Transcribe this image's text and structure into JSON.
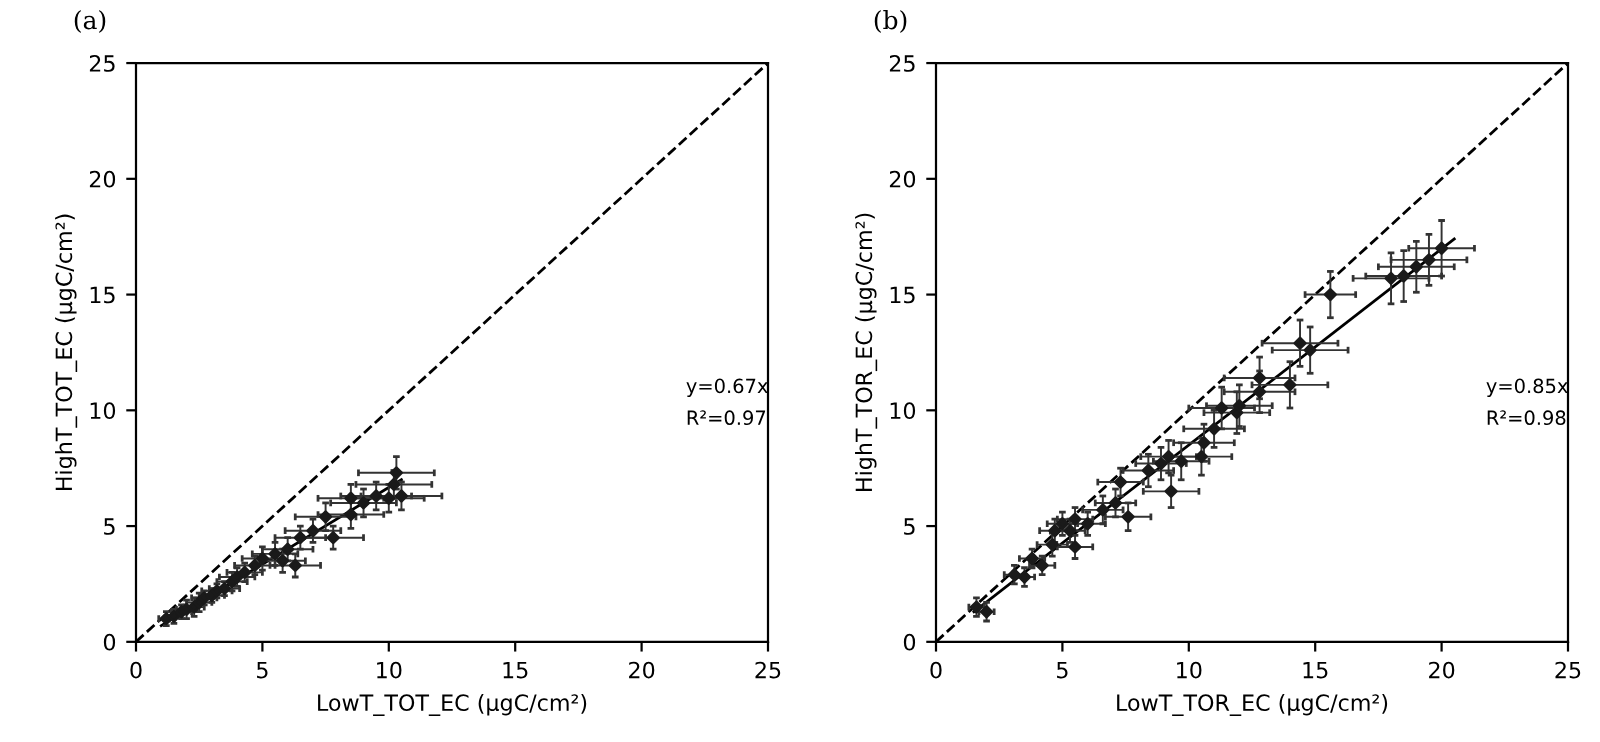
{
  "chart_data": [
    {
      "type": "scatter",
      "title": "(a)",
      "xlabel": "LowT_TOT_EC (μgC/cm²)",
      "ylabel": "HighT_TOT_EC (μgC/cm²)",
      "xlim": [
        0,
        25
      ],
      "ylim": [
        0,
        25
      ],
      "xticks": [
        0,
        5,
        10,
        15,
        20,
        25
      ],
      "yticks": [
        0,
        5,
        10,
        15,
        20,
        25
      ],
      "grid": false,
      "legend": false,
      "annotations": [
        "y=0.67x",
        "R²=0.97"
      ],
      "series": [
        {
          "type": "scatter",
          "color": "#1a1a1a",
          "marker": "diamond",
          "x": [
            1.2,
            1.5,
            1.8,
            2.0,
            2.3,
            2.5,
            2.7,
            3.0,
            3.2,
            3.5,
            3.8,
            4.0,
            4.3,
            4.7,
            5.0,
            5.5,
            5.8,
            6.0,
            6.3,
            6.5,
            7.0,
            7.5,
            7.8,
            8.5,
            8.5,
            9.0,
            9.5,
            10.0,
            10.2,
            10.3,
            10.5
          ],
          "values": [
            1.0,
            1.1,
            1.3,
            1.4,
            1.5,
            1.7,
            1.9,
            2.0,
            2.2,
            2.3,
            2.6,
            2.8,
            3.0,
            3.3,
            3.6,
            3.8,
            3.5,
            4.0,
            3.3,
            4.5,
            4.8,
            5.4,
            4.5,
            5.5,
            6.2,
            6.0,
            6.3,
            6.2,
            6.8,
            7.3,
            6.3
          ],
          "errors": [
            0.3,
            0.3,
            0.3,
            0.4,
            0.4,
            0.4,
            0.3,
            0.3,
            0.3,
            0.3,
            0.4,
            0.4,
            0.4,
            0.4,
            0.5,
            0.5,
            0.5,
            0.5,
            0.5,
            0.5,
            0.5,
            0.6,
            0.5,
            0.6,
            0.6,
            0.6,
            0.6,
            0.6,
            0.6,
            0.7,
            0.6
          ],
          "xerrors": [
            0.3,
            0.3,
            0.4,
            0.4,
            0.4,
            0.5,
            0.5,
            0.5,
            0.6,
            0.6,
            0.6,
            0.7,
            0.7,
            0.8,
            0.8,
            0.9,
            0.9,
            1.0,
            1.0,
            1.0,
            1.1,
            1.2,
            1.2,
            1.3,
            1.3,
            1.3,
            1.4,
            1.4,
            1.5,
            1.5,
            1.6
          ]
        },
        {
          "type": "line",
          "color": "#000000",
          "line_style": "solid",
          "x": [
            1.0,
            10.5
          ],
          "values": [
            0.7,
            7.0
          ]
        },
        {
          "type": "line",
          "color": "#000000",
          "line_style": "dashed",
          "x": [
            0,
            25
          ],
          "values": [
            0,
            25
          ]
        }
      ]
    },
    {
      "type": "scatter",
      "title": "(b)",
      "xlabel": "LowT_TOR_EC (μgC/cm²)",
      "ylabel": "HighT_TOR_EC (μgC/cm²)",
      "xlim": [
        0,
        25
      ],
      "ylim": [
        0,
        25
      ],
      "xticks": [
        0,
        5,
        10,
        15,
        20,
        25
      ],
      "yticks": [
        0,
        5,
        10,
        15,
        20,
        25
      ],
      "grid": false,
      "legend": false,
      "annotations": [
        "y=0.85x",
        "R²=0.98"
      ],
      "series": [
        {
          "type": "scatter",
          "color": "#1a1a1a",
          "marker": "diamond",
          "x": [
            1.6,
            2.0,
            3.1,
            3.5,
            3.8,
            4.2,
            4.6,
            4.7,
            5.0,
            5.3,
            5.5,
            5.5,
            6.0,
            6.6,
            7.1,
            7.3,
            7.6,
            8.4,
            8.9,
            9.2,
            9.3,
            9.7,
            10.5,
            10.6,
            11.0,
            11.3,
            11.9,
            12.0,
            12.8,
            12.8,
            14.0,
            14.4,
            14.8,
            15.6,
            18.0,
            18.5,
            19.0,
            19.5,
            20.0
          ],
          "values": [
            1.5,
            1.3,
            2.9,
            2.8,
            3.6,
            3.3,
            4.2,
            4.8,
            5.1,
            4.8,
            5.3,
            4.1,
            5.1,
            5.7,
            6.0,
            6.9,
            5.4,
            7.4,
            7.7,
            8.0,
            6.5,
            7.8,
            8.0,
            8.6,
            9.2,
            10.1,
            9.9,
            10.2,
            11.4,
            10.8,
            11.1,
            12.9,
            12.6,
            15.0,
            15.7,
            15.8,
            16.2,
            16.5,
            17.0
          ],
          "errors": [
            0.4,
            0.4,
            0.4,
            0.4,
            0.4,
            0.4,
            0.5,
            0.5,
            0.5,
            0.5,
            0.5,
            0.5,
            0.5,
            0.6,
            0.6,
            0.6,
            0.6,
            0.7,
            0.7,
            0.7,
            0.7,
            0.8,
            0.8,
            0.8,
            0.8,
            0.9,
            0.9,
            0.9,
            0.9,
            0.9,
            1.0,
            1.0,
            1.0,
            1.0,
            1.1,
            1.1,
            1.1,
            1.1,
            1.2
          ],
          "xerrors": [
            0.3,
            0.3,
            0.4,
            0.4,
            0.5,
            0.5,
            0.6,
            0.6,
            0.6,
            0.6,
            0.7,
            0.7,
            0.7,
            0.8,
            0.8,
            0.9,
            0.9,
            1.0,
            1.0,
            1.1,
            1.1,
            1.1,
            1.2,
            1.2,
            1.2,
            1.3,
            1.3,
            1.3,
            1.4,
            1.4,
            1.5,
            1.5,
            1.5,
            1.0,
            1.5,
            1.5,
            1.5,
            1.5,
            1.3
          ]
        },
        {
          "type": "line",
          "color": "#000000",
          "line_style": "solid",
          "x": [
            1.5,
            20.5
          ],
          "values": [
            1.3,
            17.4
          ]
        },
        {
          "type": "line",
          "color": "#000000",
          "line_style": "dashed",
          "x": [
            0,
            25
          ],
          "values": [
            0,
            25
          ]
        }
      ]
    }
  ]
}
